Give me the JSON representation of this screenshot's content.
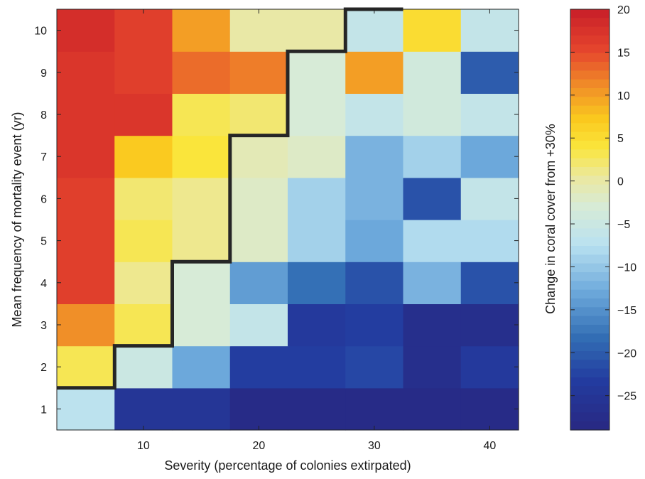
{
  "chart_data": {
    "type": "heatmap",
    "xlabel": "Severity (percentage of colonies extirpated)",
    "ylabel": "Mean frequency of mortality event (yr)",
    "colorbar_label": "Change in coral cover from +30%",
    "x_categories": [
      5,
      10,
      15,
      20,
      25,
      30,
      35,
      40
    ],
    "y_categories": [
      1,
      2,
      3,
      4,
      5,
      6,
      7,
      8,
      9,
      10
    ],
    "x_ticks": [
      10,
      20,
      30,
      40
    ],
    "y_ticks": [
      1,
      2,
      3,
      4,
      5,
      6,
      7,
      8,
      9,
      10
    ],
    "clim": [
      -29,
      20
    ],
    "colorbar_ticks": [
      20,
      15,
      10,
      5,
      0,
      -5,
      -10,
      -15,
      -20,
      -25
    ],
    "values": [
      [
        -7,
        -25,
        -25,
        -28,
        -28,
        -28,
        -28,
        -28
      ],
      [
        3,
        -5,
        -13,
        -23,
        -23,
        -22,
        -27,
        -24
      ],
      [
        11,
        3,
        -3,
        -6,
        -24,
        -23,
        -27,
        -27
      ],
      [
        16,
        1,
        -3,
        -14,
        -18,
        -21,
        -12,
        -21
      ],
      [
        16,
        3,
        1,
        -2,
        -9,
        -13,
        -8,
        -8
      ],
      [
        16,
        2,
        1,
        -2,
        -9,
        -12,
        -21,
        -6
      ],
      [
        17,
        7,
        4,
        -1,
        -2,
        -12,
        -9,
        -13
      ],
      [
        17,
        17,
        3,
        2,
        -3,
        -6,
        -4,
        -6
      ],
      [
        17,
        16,
        13,
        12,
        -3,
        10,
        -4,
        -20
      ],
      [
        18,
        16,
        10,
        0,
        0,
        -6,
        5,
        -6
      ]
    ],
    "boundary": "staircase separating positive and negative change",
    "boundary_steps": [
      {
        "severity_max": 5,
        "frequency": 1.5
      },
      {
        "severity_max": 10,
        "frequency": 2.5
      },
      {
        "severity_max": 15,
        "frequency": 4.5
      },
      {
        "severity_max": 20,
        "frequency": 7.5
      },
      {
        "severity_max": 25,
        "frequency": 9.5
      },
      {
        "severity_max": 30,
        "frequency": 10.5
      }
    ]
  }
}
